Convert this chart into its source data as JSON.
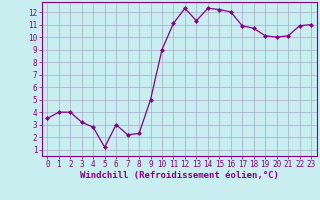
{
  "x": [
    0,
    1,
    2,
    3,
    4,
    5,
    6,
    7,
    8,
    9,
    10,
    11,
    12,
    13,
    14,
    15,
    16,
    17,
    18,
    19,
    20,
    21,
    22,
    23
  ],
  "y": [
    3.5,
    4.0,
    4.0,
    3.2,
    2.8,
    1.2,
    3.0,
    2.2,
    2.3,
    5.0,
    9.0,
    11.1,
    12.3,
    11.3,
    12.3,
    12.2,
    12.0,
    10.9,
    10.7,
    10.1,
    10.0,
    10.1,
    10.9,
    11.0
  ],
  "line_color": "#880088",
  "marker": "D",
  "markersize": 2,
  "linewidth": 0.9,
  "bg_color": "#c8eef0",
  "grid_color": "#aaaacc",
  "xlabel": "Windchill (Refroidissement éolien,°C)",
  "xlabel_fontsize": 6.5,
  "ylabel_ticks": [
    1,
    2,
    3,
    4,
    5,
    6,
    7,
    8,
    9,
    10,
    11,
    12
  ],
  "xlim": [
    -0.5,
    23.5
  ],
  "ylim": [
    0.5,
    12.8
  ],
  "tick_color": "#880088",
  "spine_color": "#880088",
  "tick_fontsize": 5.5
}
